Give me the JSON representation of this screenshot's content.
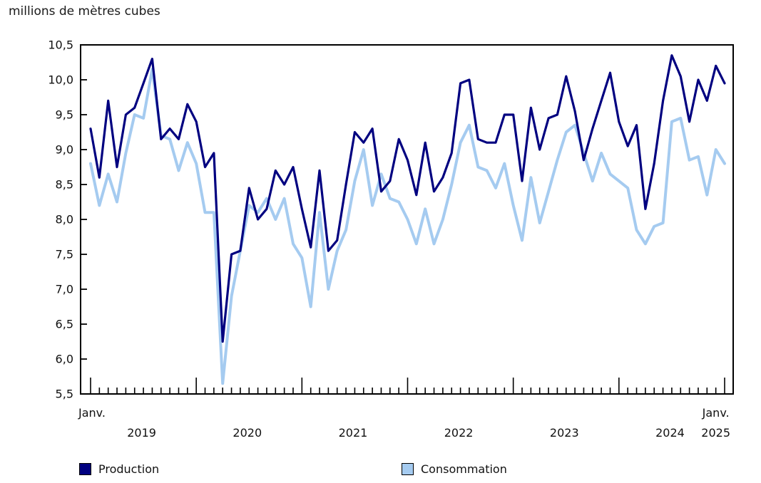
{
  "chart_data": {
    "type": "line",
    "title": "millions de mètres cubes",
    "x_unit": "month",
    "x_range": "Janv. 2019 – Janv. 2025",
    "ylim": [
      5.5,
      10.5
    ],
    "ytick_step": 0.5,
    "ytick_labels": [
      "10,5",
      "10,0",
      "9,5",
      "9,0",
      "8,5",
      "8,0",
      "7,5",
      "7,0",
      "6,5",
      "6,0",
      "5,5"
    ],
    "grid": false,
    "legend_position": "bottom",
    "x_axis": {
      "start_month_label": "Janv.",
      "end_month_label": "Janv.",
      "years": [
        {
          "label": "2019",
          "month_index": 5.8
        },
        {
          "label": "2020",
          "month_index": 17.8
        },
        {
          "label": "2021",
          "month_index": 29.8
        },
        {
          "label": "2022",
          "month_index": 41.8
        },
        {
          "label": "2023",
          "month_index": 53.8
        },
        {
          "label": "2024",
          "month_index": 65.8
        },
        {
          "label": "2025",
          "month_index": 71.0
        }
      ]
    },
    "series": [
      {
        "name": "Production",
        "color": "#000080",
        "values": [
          9.3,
          8.6,
          9.7,
          8.75,
          9.5,
          9.6,
          9.95,
          10.3,
          9.15,
          9.3,
          9.15,
          9.65,
          9.4,
          8.75,
          8.95,
          6.25,
          7.5,
          7.55,
          8.45,
          8.0,
          8.15,
          8.7,
          8.5,
          8.75,
          8.15,
          7.6,
          8.7,
          7.55,
          7.7,
          8.5,
          9.25,
          9.1,
          9.3,
          8.4,
          8.55,
          9.15,
          8.85,
          8.35,
          9.1,
          8.4,
          8.6,
          8.95,
          9.95,
          10.0,
          9.15,
          9.1,
          9.1,
          9.5,
          9.5,
          8.55,
          9.6,
          9.0,
          9.45,
          9.5,
          10.05,
          9.55,
          8.85,
          9.3,
          9.7,
          10.1,
          9.4,
          9.05,
          9.35,
          8.15,
          8.8,
          9.7,
          10.35,
          10.05,
          9.4,
          10.0,
          9.7,
          10.2,
          9.95
        ]
      },
      {
        "name": "Consommation",
        "color": "#A5CBF0",
        "values": [
          8.8,
          8.2,
          8.65,
          8.25,
          8.95,
          9.5,
          9.45,
          10.15,
          9.2,
          9.15,
          8.7,
          9.1,
          8.8,
          8.1,
          8.1,
          5.65,
          6.9,
          7.55,
          8.2,
          8.1,
          8.3,
          8.0,
          8.3,
          7.65,
          7.45,
          6.75,
          8.1,
          7.0,
          7.55,
          7.85,
          8.55,
          9.0,
          8.2,
          8.65,
          8.3,
          8.25,
          8.0,
          7.65,
          8.15,
          7.65,
          8.0,
          8.5,
          9.1,
          9.35,
          8.75,
          8.7,
          8.45,
          8.8,
          8.2,
          7.7,
          8.6,
          7.95,
          8.4,
          8.85,
          9.25,
          9.35,
          8.95,
          8.55,
          8.95,
          8.65,
          8.55,
          8.45,
          7.85,
          7.65,
          7.9,
          7.95,
          9.4,
          9.45,
          8.85,
          8.9,
          8.35,
          9.0,
          8.8
        ]
      }
    ]
  }
}
